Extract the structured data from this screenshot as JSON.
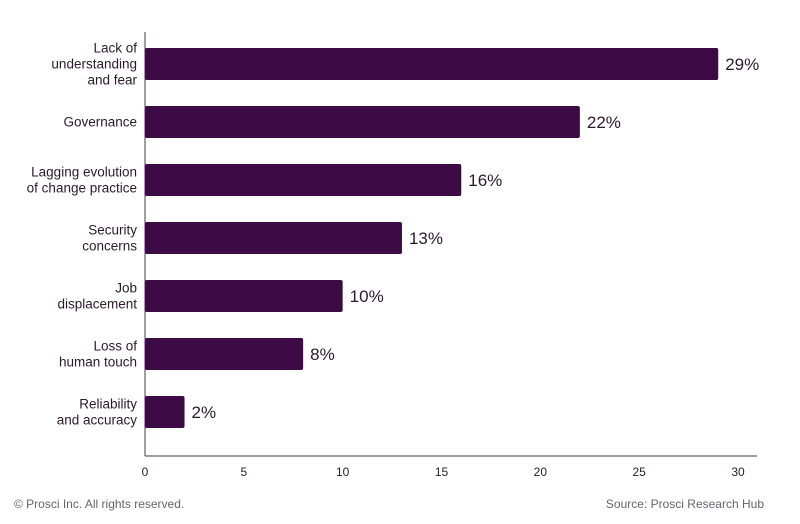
{
  "chart_data": {
    "type": "bar",
    "orientation": "horizontal",
    "categories": [
      [
        "Lack of",
        "understanding",
        "and fear"
      ],
      [
        "Governance"
      ],
      [
        "Lagging evolution",
        "of change practice"
      ],
      [
        "Security",
        "concerns"
      ],
      [
        "Job",
        "displacement"
      ],
      [
        "Loss of",
        "human touch"
      ],
      [
        "Reliability",
        "and accuracy"
      ]
    ],
    "values": [
      29,
      22,
      16,
      13,
      10,
      8,
      2
    ],
    "value_labels": [
      "29%",
      "22%",
      "16%",
      "13%",
      "10%",
      "8%",
      "2%"
    ],
    "xlim": [
      0,
      30
    ],
    "xticks": [
      0,
      5,
      10,
      15,
      20,
      25,
      30
    ],
    "grid": false,
    "bar_color": "#3d0a46"
  },
  "footer": {
    "copyright": "© Prosci Inc. All rights reserved.",
    "source": "Source: Prosci Research Hub"
  }
}
